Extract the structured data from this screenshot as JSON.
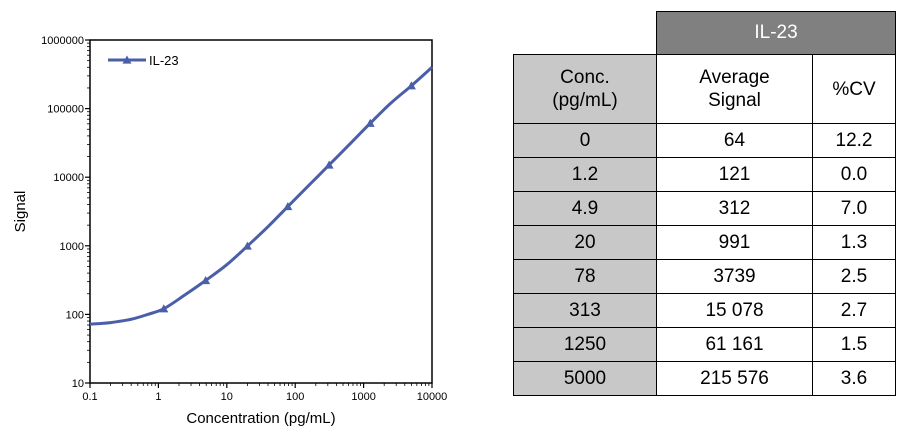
{
  "chart_data": {
    "type": "line",
    "xlabel": "Concentration (pg/mL)",
    "ylabel": "Signal",
    "xscale": "log",
    "yscale": "log",
    "xlim": [
      0.1,
      10000
    ],
    "ylim": [
      10,
      1000000
    ],
    "x_ticks": [
      "0.1",
      "1",
      "10",
      "100",
      "1000",
      "10000"
    ],
    "y_ticks": [
      "10",
      "100",
      "1000",
      "10000",
      "100000",
      "1000000"
    ],
    "legend_position": "top-left",
    "series": [
      {
        "name": "IL-23",
        "color": "#4a5fa8",
        "marker": "triangle",
        "x": [
          1.2,
          4.9,
          20,
          78,
          313,
          1250,
          5000
        ],
        "y": [
          121,
          312,
          991,
          3739,
          15078,
          61161,
          215576
        ]
      }
    ],
    "fit_curve": {
      "x": [
        0.1,
        0.2,
        0.4,
        0.7,
        1.2,
        2.4,
        4.9,
        10,
        20,
        40,
        78,
        150,
        313,
        600,
        1250,
        2500,
        5000,
        10000
      ],
      "y": [
        72,
        76,
        85,
        100,
        121,
        190,
        312,
        530,
        991,
        1900,
        3739,
        7200,
        15078,
        29000,
        61161,
        120000,
        215576,
        400000
      ]
    }
  },
  "table": {
    "group_header": "IL-23",
    "headers": [
      "Conc.\n(pg/mL)",
      "Average\nSignal",
      "%CV"
    ],
    "rows": [
      [
        "0",
        "64",
        "12.2"
      ],
      [
        "1.2",
        "121",
        "0.0"
      ],
      [
        "4.9",
        "312",
        "7.0"
      ],
      [
        "20",
        "991",
        "1.3"
      ],
      [
        "78",
        "3739",
        "2.5"
      ],
      [
        "313",
        "15 078",
        "2.7"
      ],
      [
        "1250",
        "61 161",
        "1.5"
      ],
      [
        "5000",
        "215 576",
        "3.6"
      ]
    ]
  }
}
